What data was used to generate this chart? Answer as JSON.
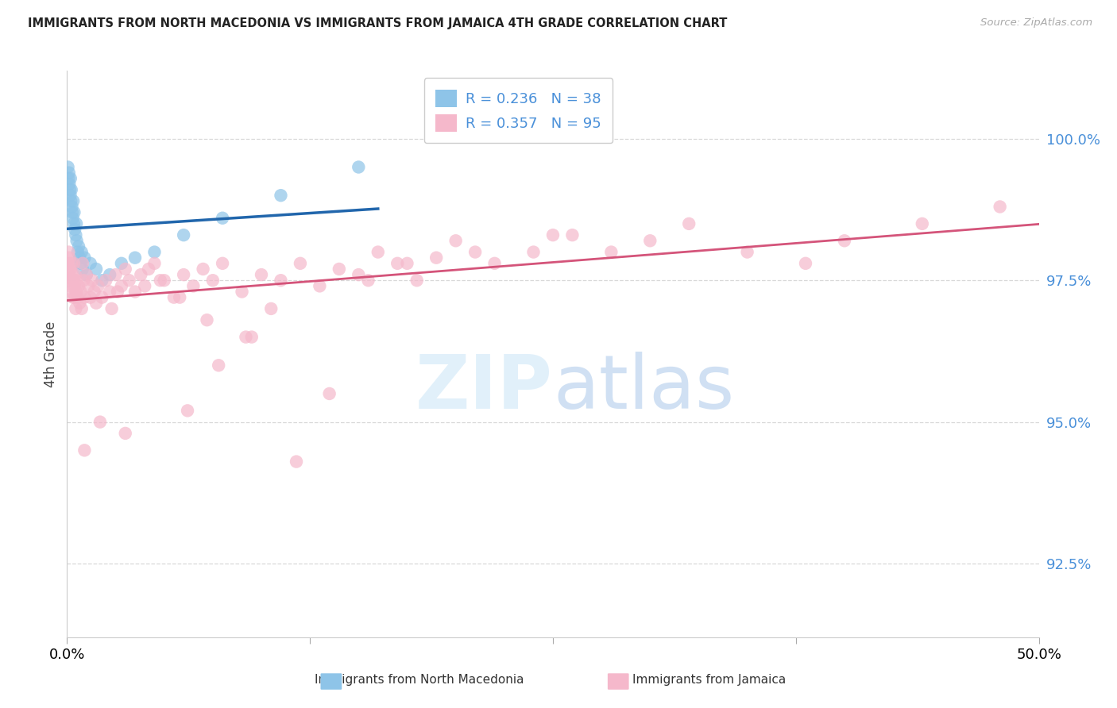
{
  "title": "IMMIGRANTS FROM NORTH MACEDONIA VS IMMIGRANTS FROM JAMAICA 4TH GRADE CORRELATION CHART",
  "source_text": "Source: ZipAtlas.com",
  "ylabel": "4th Grade",
  "y_ticks": [
    92.5,
    95.0,
    97.5,
    100.0
  ],
  "y_tick_labels": [
    "92.5%",
    "95.0%",
    "97.5%",
    "100.0%"
  ],
  "xlim": [
    0.0,
    50.0
  ],
  "ylim": [
    91.2,
    101.2
  ],
  "R_blue": 0.236,
  "N_blue": 38,
  "R_pink": 0.357,
  "N_pink": 95,
  "blue_color": "#8ec4e8",
  "pink_color": "#f5b8cb",
  "trendline_blue": "#2166ac",
  "trendline_pink": "#d4547a",
  "tick_color": "#4a90d9",
  "legend_label_blue": "Immigrants from North Macedonia",
  "legend_label_pink": "Immigrants from Jamaica",
  "grid_color": "#d8d8d8",
  "blue_scatter_x": [
    0.05,
    0.08,
    0.1,
    0.12,
    0.15,
    0.17,
    0.18,
    0.2,
    0.22,
    0.25,
    0.27,
    0.3,
    0.32,
    0.35,
    0.37,
    0.4,
    0.45,
    0.48,
    0.5,
    0.55,
    0.6,
    0.65,
    0.7,
    0.75,
    0.8,
    0.9,
    1.0,
    1.2,
    1.5,
    1.8,
    2.2,
    2.8,
    3.5,
    4.5,
    6.0,
    8.0,
    11.0,
    15.0
  ],
  "blue_scatter_y": [
    99.5,
    99.3,
    99.4,
    99.2,
    99.1,
    99.0,
    99.3,
    98.9,
    99.1,
    98.8,
    98.7,
    98.6,
    98.9,
    98.5,
    98.7,
    98.4,
    98.3,
    98.5,
    98.2,
    98.0,
    98.1,
    97.9,
    97.8,
    98.0,
    97.7,
    97.9,
    97.6,
    97.8,
    97.7,
    97.5,
    97.6,
    97.8,
    97.9,
    98.0,
    98.3,
    98.6,
    99.0,
    99.5
  ],
  "pink_scatter_x": [
    0.05,
    0.08,
    0.1,
    0.12,
    0.15,
    0.18,
    0.2,
    0.22,
    0.25,
    0.28,
    0.3,
    0.32,
    0.35,
    0.38,
    0.4,
    0.42,
    0.45,
    0.48,
    0.5,
    0.55,
    0.6,
    0.65,
    0.7,
    0.75,
    0.8,
    0.85,
    0.9,
    1.0,
    1.1,
    1.2,
    1.3,
    1.4,
    1.5,
    1.6,
    1.8,
    2.0,
    2.2,
    2.5,
    2.8,
    3.0,
    3.2,
    3.5,
    3.8,
    4.0,
    4.5,
    5.0,
    5.5,
    6.0,
    6.5,
    7.0,
    7.5,
    8.0,
    9.0,
    10.0,
    11.0,
    12.0,
    13.0,
    14.0,
    15.0,
    16.0,
    17.0,
    18.0,
    19.0,
    20.0,
    22.0,
    24.0,
    26.0,
    28.0,
    30.0,
    32.0,
    35.0,
    38.0,
    40.0,
    44.0,
    48.0,
    2.6,
    4.2,
    7.2,
    5.8,
    9.5,
    10.5,
    15.5,
    17.5,
    21.0,
    25.0,
    3.0,
    1.7,
    0.9,
    6.2,
    11.8,
    13.5,
    2.3,
    4.8,
    7.8,
    9.2
  ],
  "pink_scatter_y": [
    97.8,
    98.0,
    97.6,
    97.9,
    97.5,
    97.7,
    97.4,
    97.8,
    97.3,
    97.6,
    97.2,
    97.5,
    97.8,
    97.4,
    97.2,
    97.6,
    97.0,
    97.3,
    97.5,
    97.2,
    97.4,
    97.1,
    97.3,
    97.0,
    97.8,
    97.5,
    97.2,
    97.6,
    97.4,
    97.2,
    97.5,
    97.3,
    97.1,
    97.4,
    97.2,
    97.5,
    97.3,
    97.6,
    97.4,
    97.7,
    97.5,
    97.3,
    97.6,
    97.4,
    97.8,
    97.5,
    97.2,
    97.6,
    97.4,
    97.7,
    97.5,
    97.8,
    97.3,
    97.6,
    97.5,
    97.8,
    97.4,
    97.7,
    97.6,
    98.0,
    97.8,
    97.5,
    97.9,
    98.2,
    97.8,
    98.0,
    98.3,
    98.0,
    98.2,
    98.5,
    98.0,
    97.8,
    98.2,
    98.5,
    98.8,
    97.3,
    97.7,
    96.8,
    97.2,
    96.5,
    97.0,
    97.5,
    97.8,
    98.0,
    98.3,
    94.8,
    95.0,
    94.5,
    95.2,
    94.3,
    95.5,
    97.0,
    97.5,
    96.0,
    96.5
  ]
}
